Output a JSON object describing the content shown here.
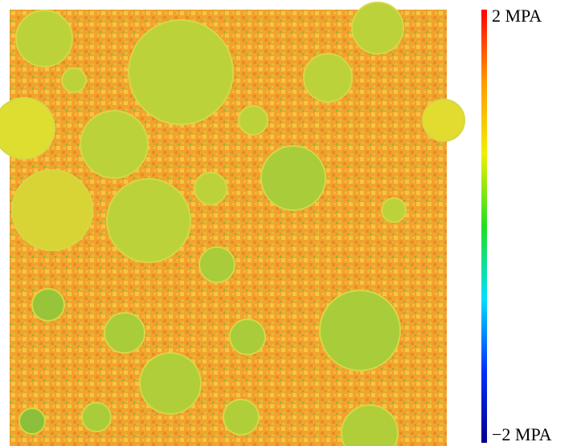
{
  "chart_data": {
    "type": "field",
    "zlim": [
      -2,
      2
    ],
    "zticks": [
      {
        "value": -2,
        "label": "−2 MPA"
      },
      {
        "value": 2,
        "label": "2 MPA"
      }
    ],
    "colormap": [
      "#00008f",
      "#0030ff",
      "#00e0ff",
      "#20e020",
      "#f0f000",
      "#ff9a00",
      "#ff0000"
    ]
  }
}
